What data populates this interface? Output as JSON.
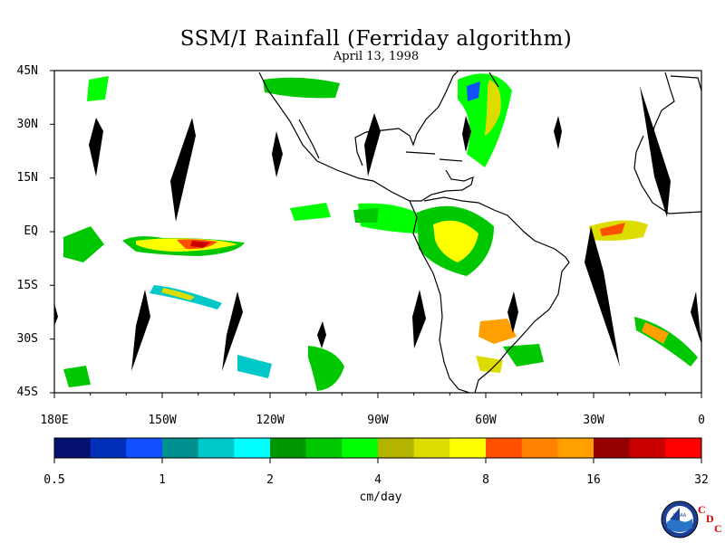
{
  "title": "SSM/I Rainfall (Ferriday algorithm)",
  "subtitle": "April 13, 1998",
  "map": {
    "lat_labels": [
      "45N",
      "30N",
      "15N",
      "EQ",
      "15S",
      "30S",
      "45S"
    ],
    "lon_labels": [
      "180E",
      "150W",
      "120W",
      "90W",
      "60W",
      "30W",
      "0"
    ]
  },
  "colorbar": {
    "colors": [
      "#03106e",
      "#0030b8",
      "#1050ff",
      "#009090",
      "#00c8c8",
      "#00ffff",
      "#009600",
      "#00c800",
      "#00ff00",
      "#b4b400",
      "#dcdc00",
      "#ffff00",
      "#ff5000",
      "#ff8200",
      "#ffa000",
      "#960000",
      "#c80000",
      "#ff0000"
    ],
    "tick_labels": [
      "0.5",
      "1",
      "2",
      "4",
      "8",
      "16",
      "32"
    ],
    "units": "cm/day"
  },
  "logo": {
    "icon": "noaa-logo",
    "text": "NOAA",
    "cdc_letters": [
      "C",
      "D",
      "C"
    ]
  }
}
